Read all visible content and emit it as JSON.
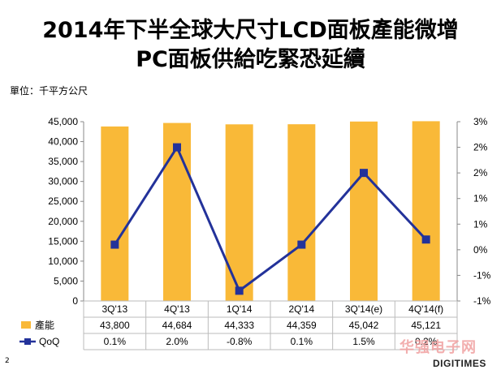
{
  "title_line1": "2014年下半全球大尺寸LCD面板產能微增",
  "title_line2": "PC面板供給吃緊恐延續",
  "unit_label": "單位：千平方公尺",
  "page_number": "2",
  "watermark_cn": "华强电子网",
  "watermark_logo": "DIGITIMES",
  "chart_data": {
    "type": "bar",
    "categories": [
      "3Q'13",
      "4Q'13",
      "1Q'14",
      "2Q'14",
      "3Q'14(e)",
      "4Q'14(f)"
    ],
    "series": [
      {
        "name": "產能",
        "type": "bar",
        "axis": "left",
        "color": "#F9B938",
        "values": [
          43800,
          44684,
          44333,
          44359,
          45042,
          45121
        ],
        "labels": [
          "43,800",
          "44,684",
          "44,333",
          "44,359",
          "45,042",
          "45,121"
        ]
      },
      {
        "name": "QoQ",
        "type": "line",
        "axis": "right",
        "color": "#23329A",
        "values": [
          0.1,
          2.0,
          -0.8,
          0.1,
          1.5,
          0.2
        ],
        "labels": [
          "0.1%",
          "2.0%",
          "-0.8%",
          "0.1%",
          "1.5%",
          "0.2%"
        ]
      }
    ],
    "y_left": {
      "min": 0,
      "max": 45000,
      "ticks": [
        0,
        5000,
        10000,
        15000,
        20000,
        25000,
        30000,
        35000,
        40000,
        45000
      ],
      "tick_labels": [
        "0",
        "5,000",
        "10,000",
        "15,000",
        "20,000",
        "25,000",
        "30,000",
        "35,000",
        "40,000",
        "45,000"
      ]
    },
    "y_right": {
      "min": -1,
      "max": 2.5,
      "ticks": [
        -1,
        -0.5,
        0,
        0.5,
        1,
        1.5,
        2,
        2.5
      ],
      "tick_labels": [
        "-1%",
        "-1%",
        "0%",
        "1%",
        "1%",
        "2%",
        "2%",
        "3%"
      ]
    },
    "grid": false,
    "legend": "data-table-bottom"
  }
}
